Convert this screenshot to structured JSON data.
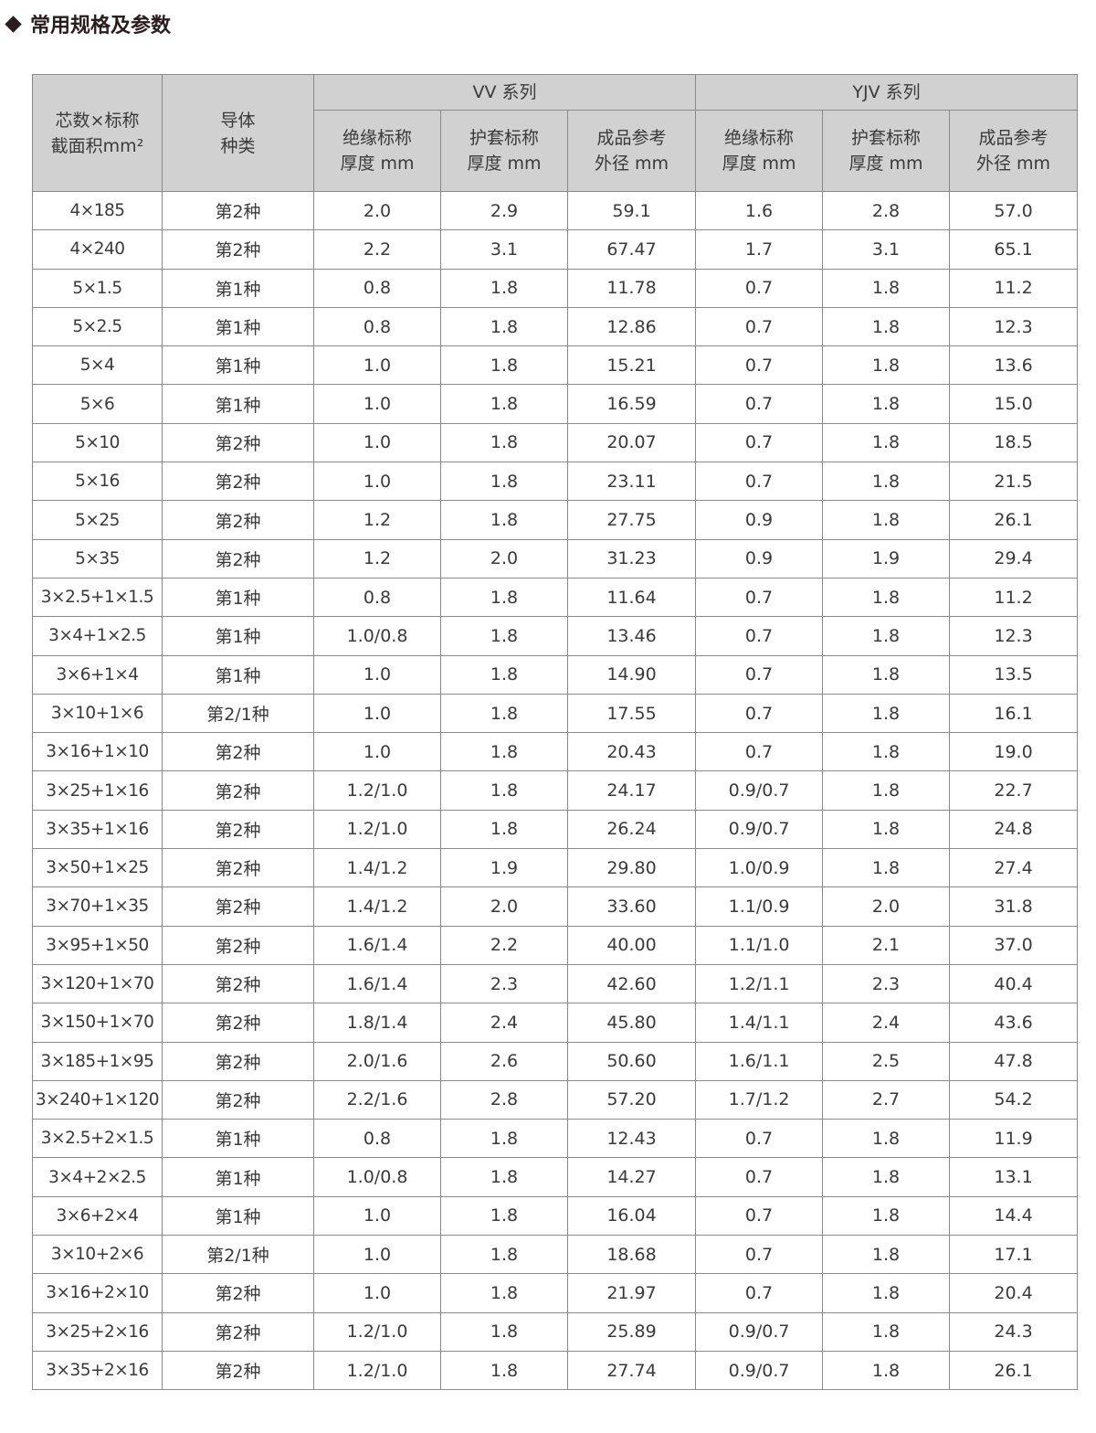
{
  "title": "常用规格及参数",
  "headers": {
    "spec": [
      "芯数×标称",
      "截面积mm²"
    ],
    "conductor": [
      "导体",
      "种类"
    ],
    "vv_group": "VV 系列",
    "yjv_group": "YJV 系列",
    "sub": [
      [
        "绝缘标称",
        "厚度 mm"
      ],
      [
        "护套标称",
        "厚度 mm"
      ],
      [
        "成品参考",
        "外径 mm"
      ],
      [
        "绝缘标称",
        "厚度 mm"
      ],
      [
        "护套标称",
        "厚度 mm"
      ],
      [
        "成品参考",
        "外径 mm"
      ]
    ]
  },
  "rows": [
    [
      "4×185",
      "第2种",
      "2.0",
      "2.9",
      "59.1",
      "1.6",
      "2.8",
      "57.0"
    ],
    [
      "4×240",
      "第2种",
      "2.2",
      "3.1",
      "67.47",
      "1.7",
      "3.1",
      "65.1"
    ],
    [
      "5×1.5",
      "第1种",
      "0.8",
      "1.8",
      "11.78",
      "0.7",
      "1.8",
      "11.2"
    ],
    [
      "5×2.5",
      "第1种",
      "0.8",
      "1.8",
      "12.86",
      "0.7",
      "1.8",
      "12.3"
    ],
    [
      "5×4",
      "第1种",
      "1.0",
      "1.8",
      "15.21",
      "0.7",
      "1.8",
      "13.6"
    ],
    [
      "5×6",
      "第1种",
      "1.0",
      "1.8",
      "16.59",
      "0.7",
      "1.8",
      "15.0"
    ],
    [
      "5×10",
      "第2种",
      "1.0",
      "1.8",
      "20.07",
      "0.7",
      "1.8",
      "18.5"
    ],
    [
      "5×16",
      "第2种",
      "1.0",
      "1.8",
      "23.11",
      "0.7",
      "1.8",
      "21.5"
    ],
    [
      "5×25",
      "第2种",
      "1.2",
      "1.8",
      "27.75",
      "0.9",
      "1.8",
      "26.1"
    ],
    [
      "5×35",
      "第2种",
      "1.2",
      "2.0",
      "31.23",
      "0.9",
      "1.9",
      "29.4"
    ],
    [
      "3×2.5+1×1.5",
      "第1种",
      "0.8",
      "1.8",
      "11.64",
      "0.7",
      "1.8",
      "11.2"
    ],
    [
      "3×4+1×2.5",
      "第1种",
      "1.0/0.8",
      "1.8",
      "13.46",
      "0.7",
      "1.8",
      "12.3"
    ],
    [
      "3×6+1×4",
      "第1种",
      "1.0",
      "1.8",
      "14.90",
      "0.7",
      "1.8",
      "13.5"
    ],
    [
      "3×10+1×6",
      "第2/1种",
      "1.0",
      "1.8",
      "17.55",
      "0.7",
      "1.8",
      "16.1"
    ],
    [
      "3×16+1×10",
      "第2种",
      "1.0",
      "1.8",
      "20.43",
      "0.7",
      "1.8",
      "19.0"
    ],
    [
      "3×25+1×16",
      "第2种",
      "1.2/1.0",
      "1.8",
      "24.17",
      "0.9/0.7",
      "1.8",
      "22.7"
    ],
    [
      "3×35+1×16",
      "第2种",
      "1.2/1.0",
      "1.8",
      "26.24",
      "0.9/0.7",
      "1.8",
      "24.8"
    ],
    [
      "3×50+1×25",
      "第2种",
      "1.4/1.2",
      "1.9",
      "29.80",
      "1.0/0.9",
      "1.8",
      "27.4"
    ],
    [
      "3×70+1×35",
      "第2种",
      "1.4/1.2",
      "2.0",
      "33.60",
      "1.1/0.9",
      "2.0",
      "31.8"
    ],
    [
      "3×95+1×50",
      "第2种",
      "1.6/1.4",
      "2.2",
      "40.00",
      "1.1/1.0",
      "2.1",
      "37.0"
    ],
    [
      "3×120+1×70",
      "第2种",
      "1.6/1.4",
      "2.3",
      "42.60",
      "1.2/1.1",
      "2.3",
      "40.4"
    ],
    [
      "3×150+1×70",
      "第2种",
      "1.8/1.4",
      "2.4",
      "45.80",
      "1.4/1.1",
      "2.4",
      "43.6"
    ],
    [
      "3×185+1×95",
      "第2种",
      "2.0/1.6",
      "2.6",
      "50.60",
      "1.6/1.1",
      "2.5",
      "47.8"
    ],
    [
      "3×240+1×120",
      "第2种",
      "2.2/1.6",
      "2.8",
      "57.20",
      "1.7/1.2",
      "2.7",
      "54.2"
    ],
    [
      "3×2.5+2×1.5",
      "第1种",
      "0.8",
      "1.8",
      "12.43",
      "0.7",
      "1.8",
      "11.9"
    ],
    [
      "3×4+2×2.5",
      "第1种",
      "1.0/0.8",
      "1.8",
      "14.27",
      "0.7",
      "1.8",
      "13.1"
    ],
    [
      "3×6+2×4",
      "第1种",
      "1.0",
      "1.8",
      "16.04",
      "0.7",
      "1.8",
      "14.4"
    ],
    [
      "3×10+2×6",
      "第2/1种",
      "1.0",
      "1.8",
      "18.68",
      "0.7",
      "1.8",
      "17.1"
    ],
    [
      "3×16+2×10",
      "第2种",
      "1.0",
      "1.8",
      "21.97",
      "0.7",
      "1.8",
      "20.4"
    ],
    [
      "3×25+2×16",
      "第2种",
      "1.2/1.0",
      "1.8",
      "25.89",
      "0.9/0.7",
      "1.8",
      "24.3"
    ],
    [
      "3×35+2×16",
      "第2种",
      "1.2/1.0",
      "1.8",
      "27.74",
      "0.9/0.7",
      "1.8",
      "26.1"
    ]
  ]
}
